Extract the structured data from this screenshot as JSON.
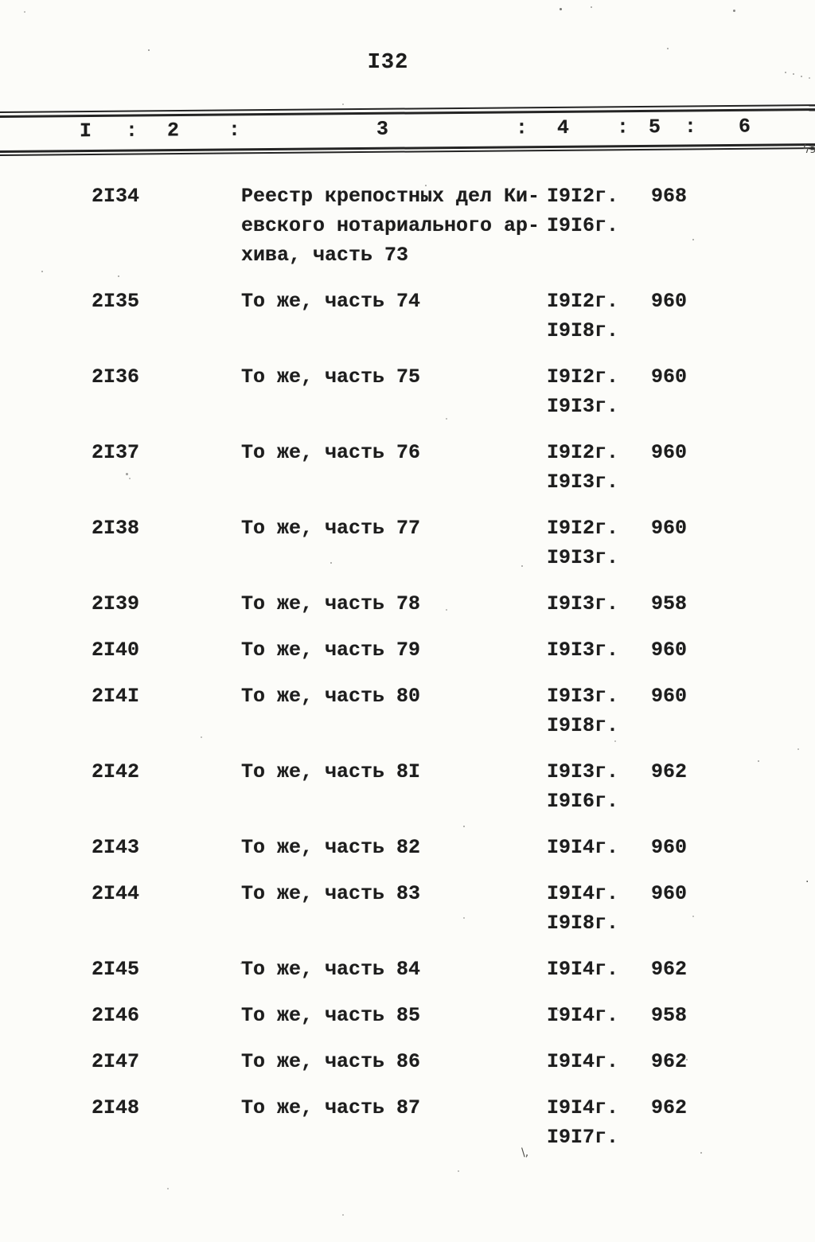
{
  "page": {
    "number": "I32"
  },
  "colors": {
    "ink": "#1d1d1d",
    "paper": "#fcfcf9"
  },
  "table": {
    "header": {
      "columns": [
        "I",
        "2",
        "3",
        "4",
        "5",
        "6"
      ],
      "separator": ":"
    },
    "rows": [
      {
        "no": "2I34",
        "description": [
          "Реестр крепостных дел Ки-",
          "евского нотариального ар-",
          "хива, часть 73"
        ],
        "dates": [
          "I9I2г.",
          "I9I6г."
        ],
        "count": "968"
      },
      {
        "no": "2I35",
        "description": [
          "То же, часть 74"
        ],
        "dates": [
          "I9I2г.",
          "I9I8г."
        ],
        "count": "960"
      },
      {
        "no": "2I36",
        "description": [
          "То же, часть 75"
        ],
        "dates": [
          "I9I2г.",
          "I9I3г."
        ],
        "count": "960"
      },
      {
        "no": "2I37",
        "description": [
          "То же, часть 76"
        ],
        "dates": [
          "I9I2г.",
          "I9I3г."
        ],
        "count": "960"
      },
      {
        "no": "2I38",
        "description": [
          "То же, часть 77"
        ],
        "dates": [
          "I9I2г.",
          "I9I3г."
        ],
        "count": "960"
      },
      {
        "no": "2I39",
        "description": [
          "То же, часть 78"
        ],
        "dates": [
          "I9I3г."
        ],
        "count": "958"
      },
      {
        "no": "2I40",
        "description": [
          "То же, часть 79"
        ],
        "dates": [
          "I9I3г."
        ],
        "count": "960"
      },
      {
        "no": "2I4I",
        "description": [
          "То же, часть 80"
        ],
        "dates": [
          "I9I3г.",
          "I9I8г."
        ],
        "count": "960"
      },
      {
        "no": "2I42",
        "description": [
          "То же, часть 8I"
        ],
        "dates": [
          "I9I3г.",
          "I9I6г."
        ],
        "count": "962"
      },
      {
        "no": "2I43",
        "description": [
          "То же, часть 82"
        ],
        "dates": [
          "I9I4г."
        ],
        "count": "960"
      },
      {
        "no": "2I44",
        "description": [
          "То же, часть 83"
        ],
        "dates": [
          "I9I4г.",
          "I9I8г."
        ],
        "count": "960"
      },
      {
        "no": "2I45",
        "description": [
          "То же, часть 84"
        ],
        "dates": [
          "I9I4г."
        ],
        "count": "962"
      },
      {
        "no": "2I46",
        "description": [
          "То же, часть 85"
        ],
        "dates": [
          "I9I4г."
        ],
        "count": "958"
      },
      {
        "no": "2I47",
        "description": [
          "То же, часть 86"
        ],
        "dates": [
          "I9I4г."
        ],
        "count": "962"
      },
      {
        "no": "2I48",
        "description": [
          "То же, часть 87"
        ],
        "dates": [
          "I9I4г.",
          "I9I7г."
        ],
        "count": "962"
      }
    ]
  }
}
